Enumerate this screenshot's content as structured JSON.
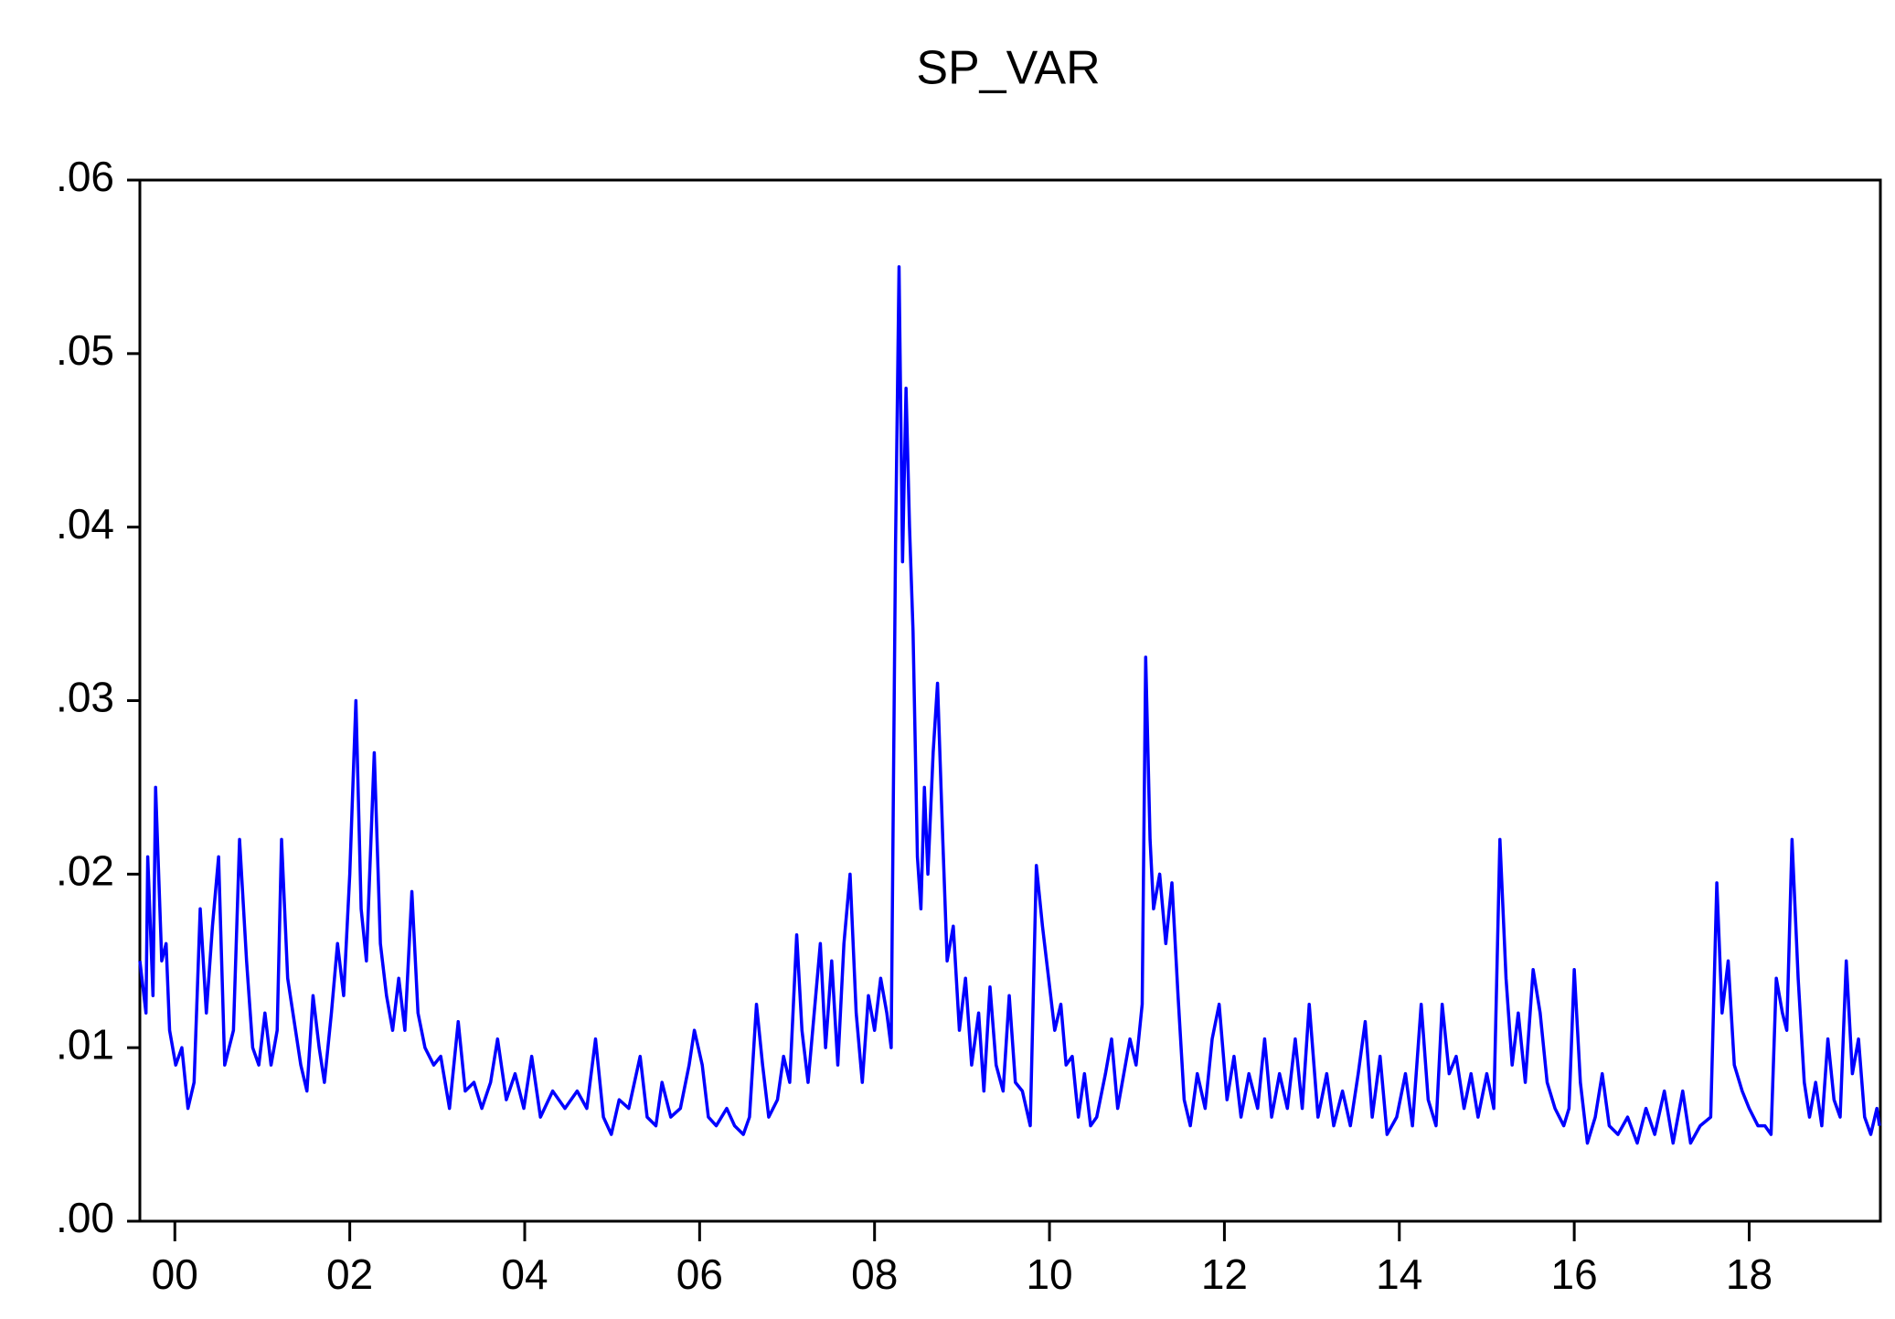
{
  "chart_data": {
    "type": "line",
    "title": "SP_VAR",
    "color": "#0000ff",
    "xlim": [
      2000.1,
      2020.0
    ],
    "xticks": [
      {
        "value": 2000.5,
        "label": "00"
      },
      {
        "value": 2002.5,
        "label": "02"
      },
      {
        "value": 2004.5,
        "label": "04"
      },
      {
        "value": 2006.5,
        "label": "06"
      },
      {
        "value": 2008.5,
        "label": "08"
      },
      {
        "value": 2010.5,
        "label": "10"
      },
      {
        "value": 2012.5,
        "label": "12"
      },
      {
        "value": 2014.5,
        "label": "14"
      },
      {
        "value": 2016.5,
        "label": "16"
      },
      {
        "value": 2018.5,
        "label": "18"
      }
    ],
    "ylim": [
      0,
      0.06
    ],
    "yticks": [
      {
        "value": 0,
        "label": ".00"
      },
      {
        "value": 0.01,
        "label": ".01"
      },
      {
        "value": 0.02,
        "label": ".02"
      },
      {
        "value": 0.03,
        "label": ".03"
      },
      {
        "value": 0.04,
        "label": ".04"
      },
      {
        "value": 0.05,
        "label": ".05"
      },
      {
        "value": 0.06,
        "label": ".06"
      }
    ],
    "x": [
      2000.1,
      2000.17,
      2000.19,
      2000.25,
      2000.28,
      2000.35,
      2000.4,
      2000.44,
      2000.51,
      2000.58,
      2000.65,
      2000.72,
      2000.79,
      2000.86,
      2000.93,
      2001.0,
      2001.07,
      2001.17,
      2001.24,
      2001.32,
      2001.39,
      2001.46,
      2001.53,
      2001.6,
      2001.67,
      2001.72,
      2001.79,
      2001.88,
      2001.94,
      2002.01,
      2002.08,
      2002.15,
      2002.21,
      2002.29,
      2002.36,
      2002.43,
      2002.5,
      2002.57,
      2002.63,
      2002.69,
      2002.78,
      2002.85,
      2002.92,
      2002.99,
      2003.06,
      2003.13,
      2003.21,
      2003.28,
      2003.36,
      2003.46,
      2003.54,
      2003.64,
      2003.74,
      2003.82,
      2003.92,
      2004.01,
      2004.11,
      2004.19,
      2004.29,
      2004.39,
      2004.49,
      2004.58,
      2004.68,
      2004.82,
      2004.96,
      2005.1,
      2005.21,
      2005.31,
      2005.4,
      2005.49,
      2005.58,
      2005.69,
      2005.82,
      2005.9,
      2006.0,
      2006.07,
      2006.17,
      2006.28,
      2006.38,
      2006.44,
      2006.53,
      2006.6,
      2006.69,
      2006.81,
      2006.9,
      2007.0,
      2007.07,
      2007.15,
      2007.22,
      2007.29,
      2007.39,
      2007.46,
      2007.53,
      2007.61,
      2007.67,
      2007.74,
      2007.81,
      2007.88,
      2007.94,
      2008.01,
      2008.08,
      2008.15,
      2008.22,
      2008.29,
      2008.36,
      2008.43,
      2008.5,
      2008.57,
      2008.64,
      2008.69,
      2008.74,
      2008.78,
      2008.82,
      2008.86,
      2008.9,
      2008.94,
      2008.99,
      2009.03,
      2009.07,
      2009.11,
      2009.17,
      2009.22,
      2009.28,
      2009.33,
      2009.4,
      2009.47,
      2009.54,
      2009.61,
      2009.69,
      2009.75,
      2009.82,
      2009.89,
      2009.97,
      2010.04,
      2010.11,
      2010.19,
      2010.28,
      2010.35,
      2010.42,
      2010.49,
      2010.56,
      2010.63,
      2010.69,
      2010.76,
      2010.83,
      2010.9,
      2010.97,
      2011.04,
      2011.14,
      2011.21,
      2011.28,
      2011.35,
      2011.42,
      2011.49,
      2011.56,
      2011.6,
      2011.65,
      2011.69,
      2011.76,
      2011.83,
      2011.9,
      2011.97,
      2012.04,
      2012.11,
      2012.19,
      2012.28,
      2012.36,
      2012.44,
      2012.53,
      2012.61,
      2012.69,
      2012.78,
      2012.88,
      2012.96,
      2013.04,
      2013.13,
      2013.22,
      2013.31,
      2013.39,
      2013.47,
      2013.57,
      2013.67,
      2013.75,
      2013.85,
      2013.94,
      2014.03,
      2014.11,
      2014.19,
      2014.28,
      2014.36,
      2014.47,
      2014.57,
      2014.65,
      2014.75,
      2014.83,
      2014.92,
      2014.99,
      2015.07,
      2015.15,
      2015.24,
      2015.32,
      2015.4,
      2015.5,
      2015.58,
      2015.65,
      2015.72,
      2015.79,
      2015.86,
      2015.94,
      2016.03,
      2016.11,
      2016.19,
      2016.28,
      2016.38,
      2016.44,
      2016.5,
      2016.57,
      2016.65,
      2016.74,
      2016.82,
      2016.9,
      2017.0,
      2017.11,
      2017.22,
      2017.32,
      2017.42,
      2017.53,
      2017.63,
      2017.74,
      2017.83,
      2017.94,
      2018.06,
      2018.13,
      2018.19,
      2018.26,
      2018.33,
      2018.42,
      2018.5,
      2018.6,
      2018.68,
      2018.75,
      2018.81,
      2018.88,
      2018.93,
      2018.99,
      2019.06,
      2019.13,
      2019.19,
      2019.26,
      2019.33,
      2019.4,
      2019.47,
      2019.54,
      2019.61,
      2019.68,
      2019.75,
      2019.82,
      2019.89,
      2019.96,
      2019.99
    ],
    "values": [
      0.015,
      0.012,
      0.021,
      0.013,
      0.025,
      0.015,
      0.016,
      0.011,
      0.009,
      0.01,
      0.0065,
      0.008,
      0.018,
      0.012,
      0.017,
      0.021,
      0.009,
      0.011,
      0.022,
      0.015,
      0.01,
      0.009,
      0.012,
      0.009,
      0.011,
      0.022,
      0.014,
      0.011,
      0.009,
      0.0075,
      0.013,
      0.01,
      0.008,
      0.012,
      0.016,
      0.013,
      0.02,
      0.03,
      0.018,
      0.015,
      0.027,
      0.016,
      0.013,
      0.011,
      0.014,
      0.011,
      0.019,
      0.012,
      0.01,
      0.009,
      0.0095,
      0.0065,
      0.0115,
      0.0075,
      0.008,
      0.0065,
      0.008,
      0.0105,
      0.007,
      0.0085,
      0.0065,
      0.0095,
      0.006,
      0.0075,
      0.0065,
      0.0075,
      0.0065,
      0.0105,
      0.006,
      0.005,
      0.007,
      0.0065,
      0.0095,
      0.006,
      0.0055,
      0.008,
      0.006,
      0.0065,
      0.009,
      0.011,
      0.009,
      0.006,
      0.0055,
      0.0065,
      0.0055,
      0.005,
      0.006,
      0.0125,
      0.009,
      0.006,
      0.007,
      0.0095,
      0.008,
      0.0165,
      0.011,
      0.008,
      0.012,
      0.016,
      0.01,
      0.015,
      0.009,
      0.016,
      0.02,
      0.012,
      0.008,
      0.013,
      0.011,
      0.014,
      0.012,
      0.01,
      0.039,
      0.055,
      0.038,
      0.048,
      0.04,
      0.034,
      0.021,
      0.018,
      0.025,
      0.02,
      0.027,
      0.031,
      0.022,
      0.015,
      0.017,
      0.011,
      0.014,
      0.009,
      0.012,
      0.0075,
      0.0135,
      0.009,
      0.0075,
      0.013,
      0.008,
      0.0075,
      0.0055,
      0.0205,
      0.017,
      0.014,
      0.011,
      0.0125,
      0.009,
      0.0095,
      0.006,
      0.0085,
      0.0055,
      0.006,
      0.0085,
      0.0105,
      0.0065,
      0.0085,
      0.0105,
      0.009,
      0.0125,
      0.0325,
      0.022,
      0.018,
      0.02,
      0.016,
      0.0195,
      0.013,
      0.007,
      0.0055,
      0.0085,
      0.0065,
      0.0105,
      0.0125,
      0.007,
      0.0095,
      0.006,
      0.0085,
      0.0065,
      0.0105,
      0.006,
      0.0085,
      0.0065,
      0.0105,
      0.0065,
      0.0125,
      0.006,
      0.0085,
      0.0055,
      0.0075,
      0.0055,
      0.0085,
      0.0115,
      0.006,
      0.0095,
      0.005,
      0.006,
      0.0085,
      0.0055,
      0.0125,
      0.007,
      0.0055,
      0.0125,
      0.0085,
      0.0095,
      0.0065,
      0.0085,
      0.006,
      0.0085,
      0.0065,
      0.022,
      0.014,
      0.009,
      0.012,
      0.008,
      0.0145,
      0.012,
      0.008,
      0.0065,
      0.0055,
      0.0065,
      0.0145,
      0.008,
      0.0045,
      0.006,
      0.0085,
      0.0055,
      0.005,
      0.006,
      0.0045,
      0.0065,
      0.005,
      0.0075,
      0.0045,
      0.0075,
      0.0045,
      0.0055,
      0.006,
      0.0195,
      0.012,
      0.015,
      0.009,
      0.0075,
      0.0065,
      0.0055,
      0.0055,
      0.005,
      0.014,
      0.012,
      0.011,
      0.022,
      0.014,
      0.008,
      0.006,
      0.008,
      0.0055,
      0.0105,
      0.007,
      0.006,
      0.015,
      0.0085,
      0.0105,
      0.006,
      0.005,
      0.0065,
      0.0055
    ]
  }
}
